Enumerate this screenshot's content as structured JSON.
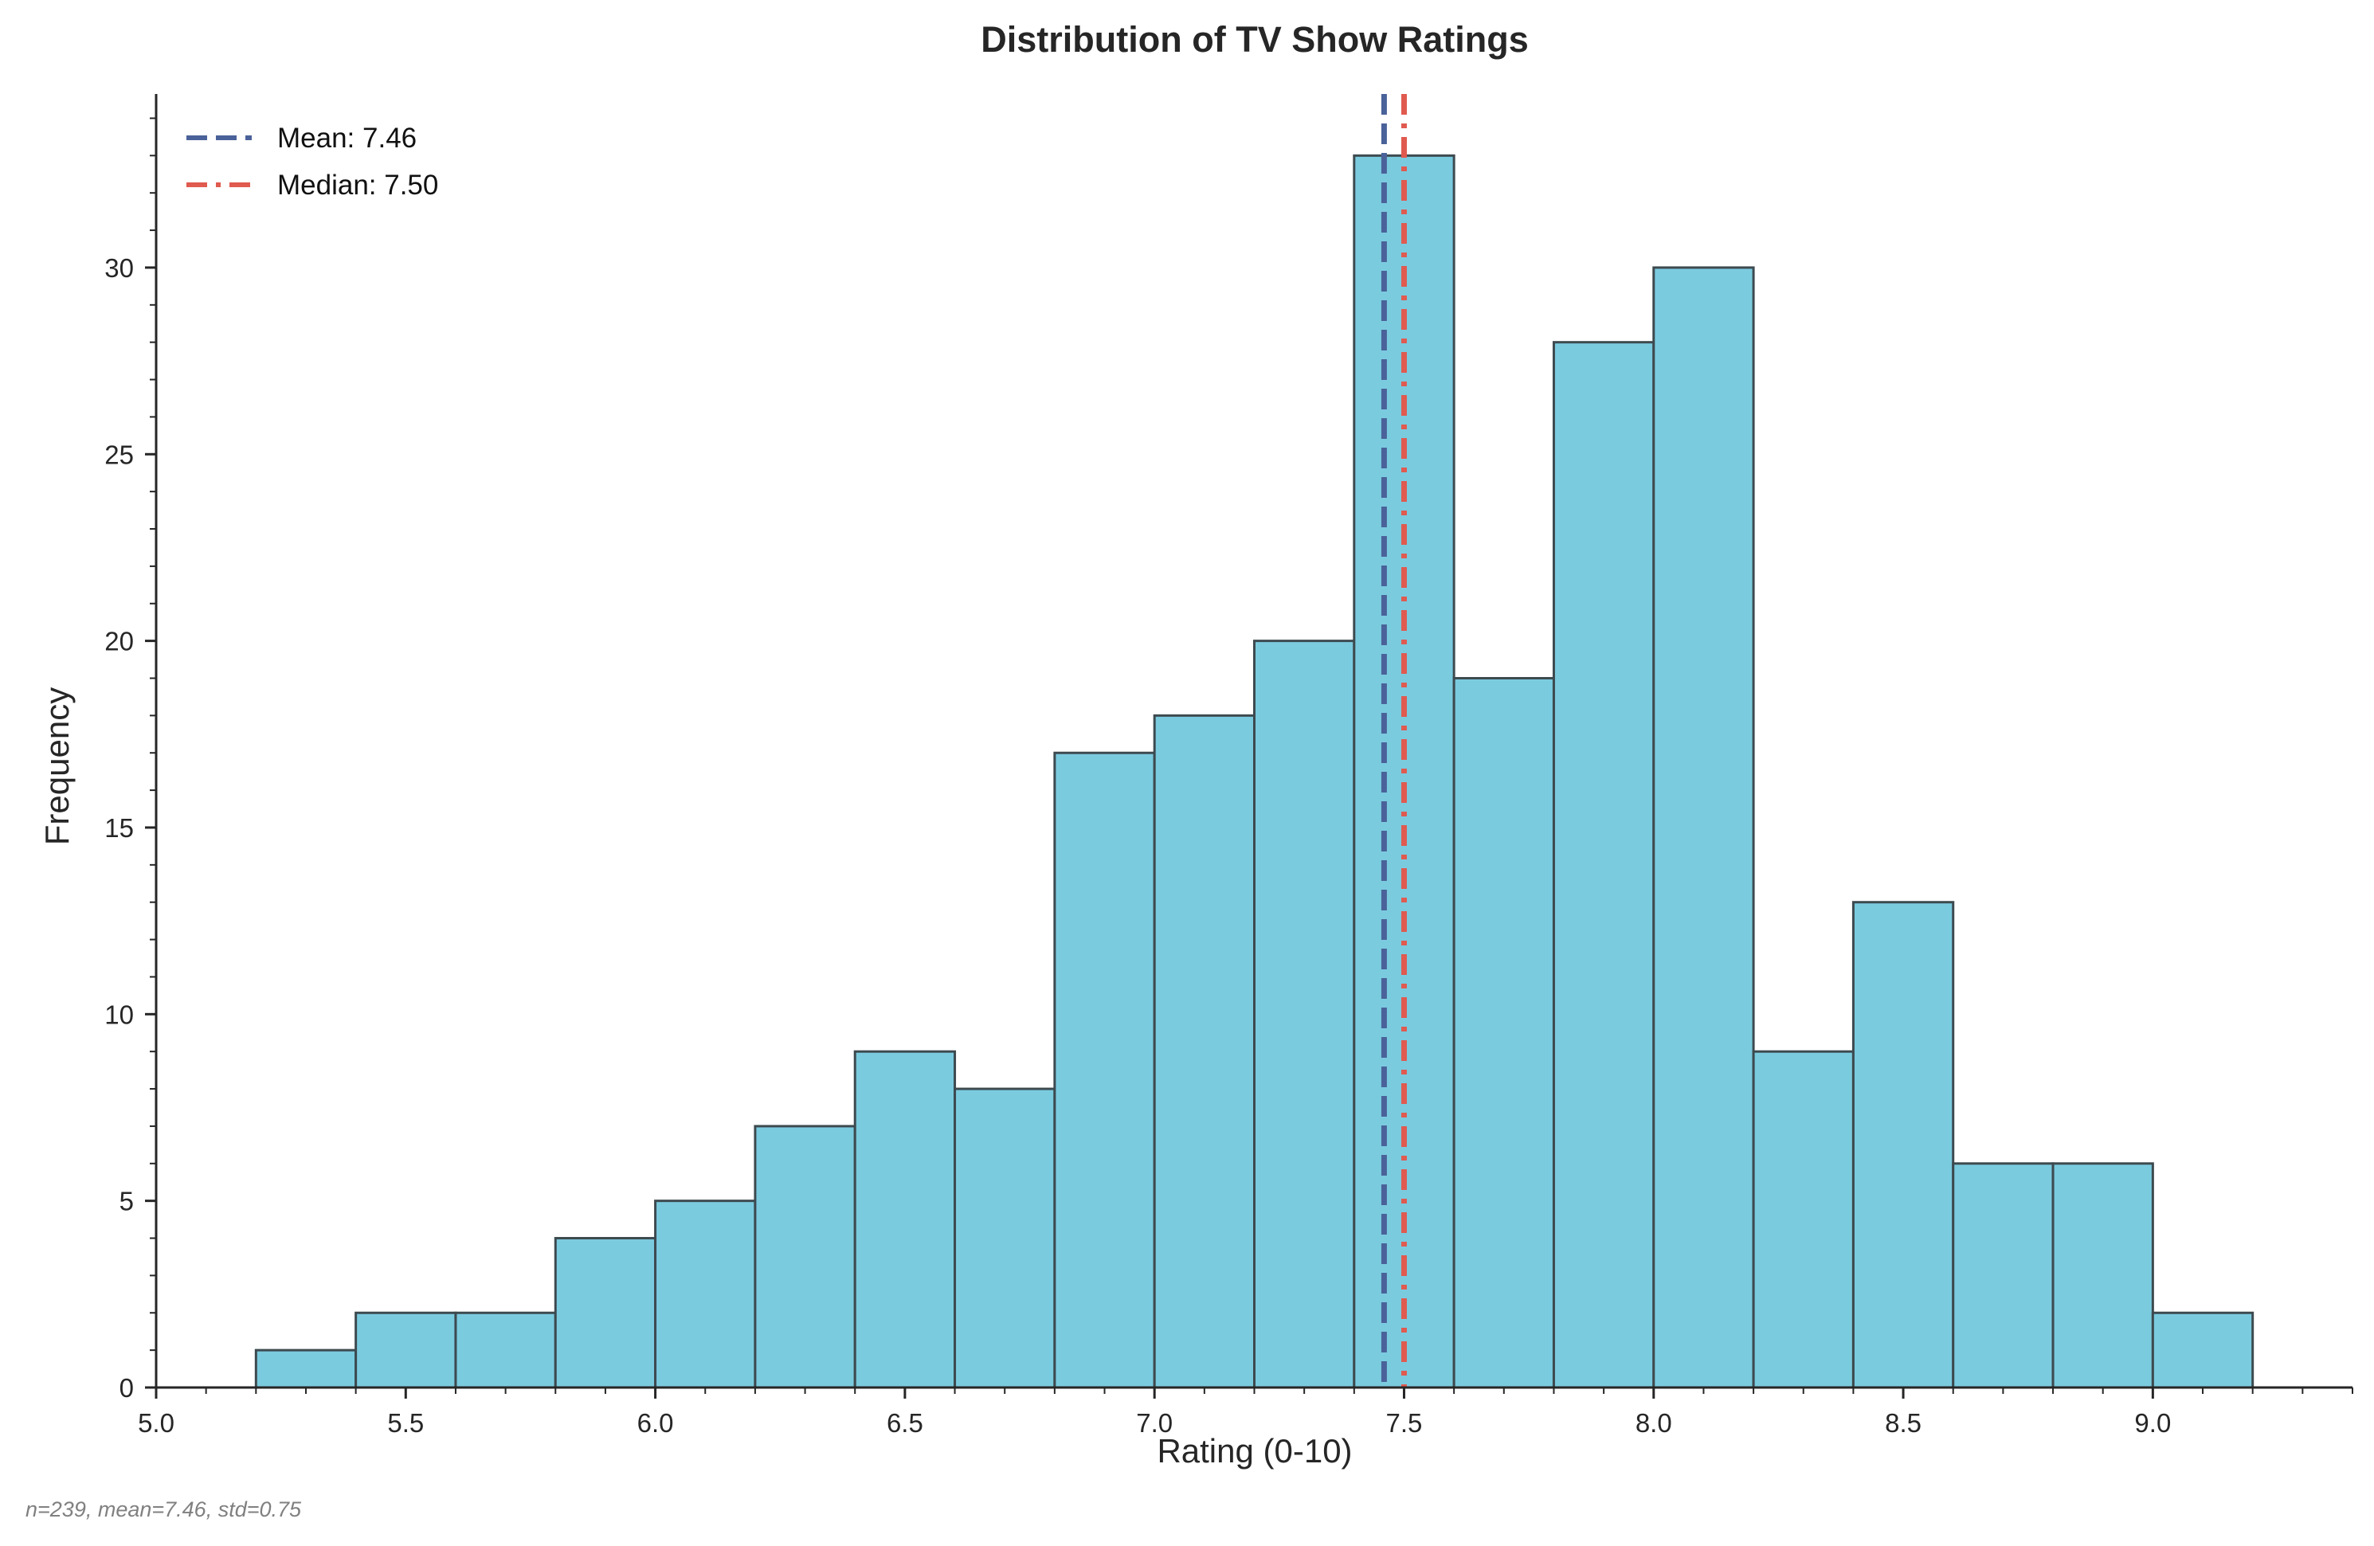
{
  "chart_data": {
    "type": "bar",
    "title": "Distribution of TV Show Ratings",
    "xlabel": "Rating (0-10)",
    "ylabel": "Frequency",
    "xlim": [
      5.0,
      9.4
    ],
    "ylim": [
      0,
      34.65
    ],
    "x_ticks": [
      5.0,
      5.5,
      6.0,
      6.5,
      7.0,
      7.5,
      8.0,
      8.5,
      9.0
    ],
    "x_tick_labels": [
      "5.0",
      "5.5",
      "6.0",
      "6.5",
      "7.0",
      "7.5",
      "8.0",
      "8.5",
      "9.0"
    ],
    "y_ticks": [
      0,
      5,
      10,
      15,
      20,
      25,
      30
    ],
    "y_tick_labels": [
      "0",
      "5",
      "10",
      "15",
      "20",
      "25",
      "30"
    ],
    "bin_edges": [
      5.2,
      5.4,
      5.6,
      5.8,
      6.0,
      6.2,
      6.4,
      6.6,
      6.8,
      7.0,
      7.2,
      7.4,
      7.6,
      7.8,
      8.0,
      8.2,
      8.4,
      8.6,
      8.8,
      9.0,
      9.2
    ],
    "values": [
      1,
      2,
      2,
      4,
      5,
      7,
      9,
      8,
      17,
      18,
      20,
      33,
      19,
      28,
      30,
      9,
      13,
      6,
      6,
      2
    ],
    "bar_color": "#7bcbdf",
    "bar_edge_color": "#3d4a4f",
    "reference_lines": [
      {
        "name": "Mean: 7.46",
        "x": 7.46,
        "color": "#4a6299",
        "style": "dashed"
      },
      {
        "name": "Median: 7.50",
        "x": 7.5,
        "color": "#e05a4f",
        "style": "dashdot"
      }
    ],
    "legend_position": "top-left",
    "grid": false,
    "footnote": "n=239, mean=7.46, std=0.75"
  }
}
